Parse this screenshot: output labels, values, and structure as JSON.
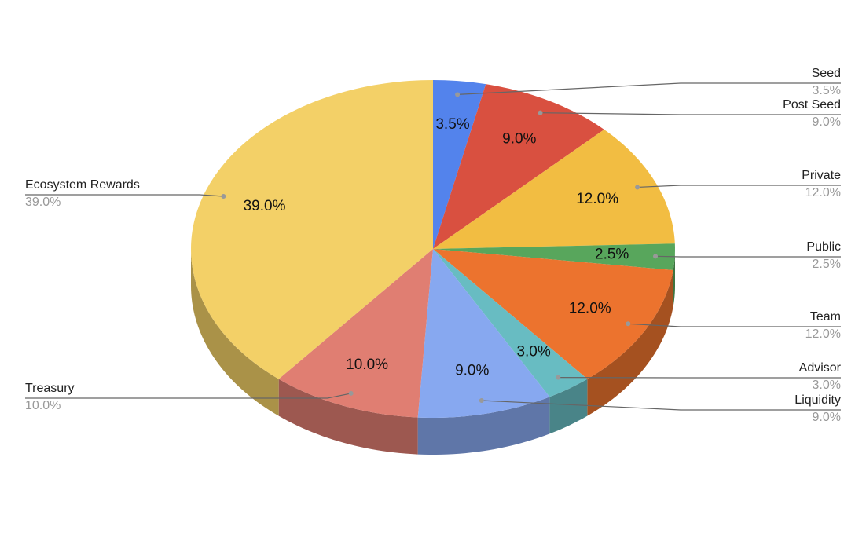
{
  "chart_data": {
    "type": "pie",
    "categories": [
      "Seed",
      "Post Seed",
      "Private",
      "Public",
      "Team",
      "Advisor",
      "Liquidity",
      "Treasury",
      "Ecosystem Rewards"
    ],
    "values": [
      3.5,
      9.0,
      12.0,
      2.5,
      12.0,
      3.0,
      9.0,
      10.0,
      39.0
    ],
    "value_labels": [
      "3.5%",
      "9.0%",
      "12.0%",
      "2.5%",
      "12.0%",
      "3.0%",
      "9.0%",
      "10.0%",
      "39.0%"
    ],
    "colors": [
      "#5383ec",
      "#d95040",
      "#f2bd42",
      "#58a65c",
      "#ec732e",
      "#68bcc2",
      "#87a8f0",
      "#e07e72",
      "#f3d067"
    ]
  }
}
